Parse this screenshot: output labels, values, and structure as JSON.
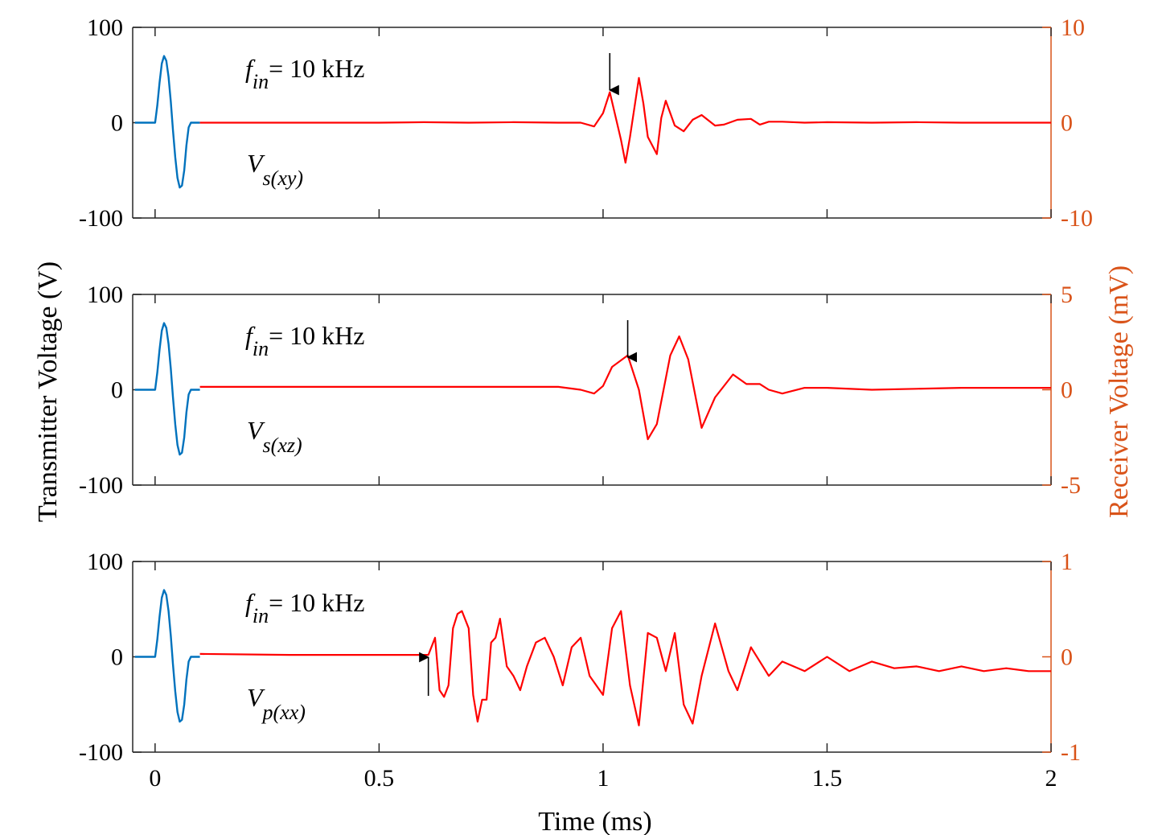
{
  "figure": {
    "left_axis_label": "Transmitter Voltage (V)",
    "right_axis_label": "Receiver Voltage (mV)",
    "x_axis_label": "Time (ms)",
    "x_tick_labels": [
      "0",
      "0.5",
      "1",
      "1.5",
      "2"
    ],
    "colors": {
      "transmitter": "#0072BD",
      "receiver": "#FF0000",
      "right_axis": "#D95319",
      "axis": "#262626"
    }
  },
  "chart_data": [
    {
      "type": "line",
      "xlabel": "Time (ms)",
      "ylabel": "Transmitter Voltage (V)",
      "ylabel_right": "Receiver Voltage (mV)",
      "xlim": [
        -0.05,
        2
      ],
      "ylim": [
        -100,
        100
      ],
      "ylim_right": [
        -10,
        10
      ],
      "left_ticks": [
        "100",
        "0",
        "-100"
      ],
      "right_ticks": [
        "10",
        "0",
        "-10"
      ],
      "annotation": {
        "f_symbol": "f",
        "f_sub": "in",
        "freq": "= 10 kHz",
        "v_symbol": "V",
        "v_sub": "s(xy)"
      },
      "arrow": {
        "x": 1.015,
        "direction": "down"
      },
      "transmitter": {
        "x": [
          -0.045,
          0.0,
          0.005,
          0.01,
          0.015,
          0.02,
          0.025,
          0.03,
          0.035,
          0.04,
          0.045,
          0.05,
          0.055,
          0.06,
          0.065,
          0.07,
          0.075,
          0.08,
          0.085,
          0.09,
          0.095,
          0.1
        ],
        "y": [
          0,
          0,
          18,
          42,
          62,
          70,
          65,
          48,
          22,
          -8,
          -36,
          -58,
          -68,
          -66,
          -50,
          -24,
          -5,
          0,
          0,
          0,
          0,
          0
        ]
      },
      "receiver": {
        "x": [
          0.1,
          0.3,
          0.5,
          0.6,
          0.7,
          0.8,
          0.9,
          0.95,
          0.98,
          1.0,
          1.015,
          1.04,
          1.05,
          1.06,
          1.08,
          1.09,
          1.1,
          1.12,
          1.13,
          1.14,
          1.16,
          1.18,
          1.2,
          1.22,
          1.25,
          1.27,
          1.3,
          1.33,
          1.35,
          1.37,
          1.4,
          1.45,
          1.5,
          1.6,
          1.7,
          1.8,
          1.9,
          2.0
        ],
        "y": [
          0,
          0,
          0,
          0.05,
          0,
          0.05,
          0,
          0,
          -0.4,
          1.0,
          3.2,
          -1.8,
          -4.2,
          -1.5,
          4.7,
          2.0,
          -1.5,
          -3.3,
          0.5,
          2.3,
          -0.3,
          -0.9,
          0.3,
          0.8,
          -0.3,
          -0.2,
          0.3,
          0.4,
          -0.2,
          0.1,
          0.1,
          0,
          0.05,
          0,
          0.05,
          0,
          0,
          0
        ]
      }
    },
    {
      "type": "line",
      "xlabel": "Time (ms)",
      "ylabel": "Transmitter Voltage (V)",
      "ylabel_right": "Receiver Voltage (mV)",
      "xlim": [
        -0.05,
        2
      ],
      "ylim": [
        -100,
        100
      ],
      "ylim_right": [
        -5,
        5
      ],
      "left_ticks": [
        "100",
        "0",
        "-100"
      ],
      "right_ticks": [
        "5",
        "0",
        "-5"
      ],
      "annotation": {
        "f_symbol": "f",
        "f_sub": "in",
        "freq": "= 10 kHz",
        "v_symbol": "V",
        "v_sub": "s(xz)"
      },
      "arrow": {
        "x": 1.055,
        "direction": "down"
      },
      "transmitter": {
        "x": [
          -0.045,
          0.0,
          0.005,
          0.01,
          0.015,
          0.02,
          0.025,
          0.03,
          0.035,
          0.04,
          0.045,
          0.05,
          0.055,
          0.06,
          0.065,
          0.07,
          0.075,
          0.08,
          0.085,
          0.09,
          0.095,
          0.1
        ],
        "y": [
          0,
          0,
          18,
          42,
          62,
          70,
          65,
          48,
          22,
          -8,
          -36,
          -58,
          -68,
          -66,
          -50,
          -24,
          -5,
          0,
          0,
          0,
          0,
          0
        ]
      },
      "receiver": {
        "x": [
          0.1,
          0.3,
          0.5,
          0.7,
          0.9,
          0.95,
          0.98,
          1.0,
          1.02,
          1.055,
          1.08,
          1.1,
          1.12,
          1.15,
          1.17,
          1.19,
          1.22,
          1.25,
          1.29,
          1.32,
          1.35,
          1.37,
          1.4,
          1.45,
          1.5,
          1.6,
          1.7,
          1.8,
          1.9,
          2.0
        ],
        "y": [
          0.15,
          0.15,
          0.15,
          0.15,
          0.15,
          0.0,
          -0.2,
          0.2,
          1.2,
          1.8,
          0.0,
          -2.6,
          -1.8,
          1.8,
          2.8,
          1.6,
          -2.0,
          -0.4,
          0.8,
          0.3,
          0.3,
          0.0,
          -0.2,
          0.1,
          0.1,
          0.0,
          0.05,
          0.1,
          0.1,
          0.1
        ]
      }
    },
    {
      "type": "line",
      "xlabel": "Time (ms)",
      "ylabel": "Transmitter Voltage (V)",
      "ylabel_right": "Receiver Voltage (mV)",
      "xlim": [
        -0.05,
        2
      ],
      "ylim": [
        -100,
        100
      ],
      "ylim_right": [
        -1,
        1
      ],
      "left_ticks": [
        "100",
        "0",
        "-100"
      ],
      "right_ticks": [
        "1",
        "0",
        "-1"
      ],
      "annotation": {
        "f_symbol": "f",
        "f_sub": "in",
        "freq": "= 10 kHz",
        "v_symbol": "V",
        "v_sub": "p(xx)"
      },
      "arrow": {
        "x": 0.61,
        "direction": "up"
      },
      "transmitter": {
        "x": [
          -0.045,
          0.0,
          0.005,
          0.01,
          0.015,
          0.02,
          0.025,
          0.03,
          0.035,
          0.04,
          0.045,
          0.05,
          0.055,
          0.06,
          0.065,
          0.07,
          0.075,
          0.08,
          0.085,
          0.09,
          0.095,
          0.1
        ],
        "y": [
          0,
          0,
          18,
          42,
          62,
          70,
          65,
          48,
          22,
          -8,
          -36,
          -58,
          -68,
          -66,
          -50,
          -24,
          -5,
          0,
          0,
          0,
          0,
          0
        ]
      },
      "receiver": {
        "x": [
          0.1,
          0.3,
          0.5,
          0.6,
          0.61,
          0.625,
          0.635,
          0.645,
          0.655,
          0.665,
          0.675,
          0.685,
          0.7,
          0.71,
          0.72,
          0.73,
          0.74,
          0.75,
          0.76,
          0.77,
          0.785,
          0.8,
          0.815,
          0.83,
          0.85,
          0.87,
          0.89,
          0.91,
          0.93,
          0.95,
          0.97,
          1.0,
          1.02,
          1.04,
          1.06,
          1.08,
          1.1,
          1.12,
          1.14,
          1.16,
          1.18,
          1.2,
          1.22,
          1.25,
          1.28,
          1.3,
          1.33,
          1.37,
          1.4,
          1.45,
          1.5,
          1.55,
          1.6,
          1.65,
          1.7,
          1.75,
          1.8,
          1.85,
          1.9,
          1.95,
          2.0
        ],
        "y": [
          0.03,
          0.02,
          0.02,
          0.02,
          0.02,
          0.2,
          -0.35,
          -0.42,
          -0.3,
          0.3,
          0.45,
          0.48,
          0.3,
          -0.4,
          -0.68,
          -0.45,
          -0.45,
          0.15,
          0.2,
          0.4,
          -0.1,
          -0.2,
          -0.35,
          -0.1,
          0.15,
          0.2,
          0.0,
          -0.3,
          0.1,
          0.2,
          -0.2,
          -0.4,
          0.3,
          0.48,
          -0.3,
          -0.72,
          0.25,
          0.2,
          -0.15,
          0.25,
          -0.5,
          -0.7,
          -0.2,
          0.35,
          -0.15,
          -0.35,
          0.1,
          -0.2,
          -0.05,
          -0.15,
          0.0,
          -0.15,
          -0.05,
          -0.12,
          -0.1,
          -0.15,
          -0.1,
          -0.15,
          -0.12,
          -0.15,
          -0.15
        ]
      }
    }
  ]
}
